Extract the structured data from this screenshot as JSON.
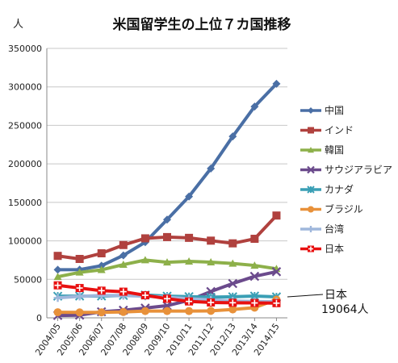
{
  "chart_data": {
    "type": "line",
    "title": "米国留学生の上位７カ国推移",
    "ylabel": "人",
    "xlabel": "",
    "ylim": [
      0,
      350000
    ],
    "yticks": [
      0,
      50000,
      100000,
      150000,
      200000,
      250000,
      300000,
      350000
    ],
    "grid": "horizontal",
    "legend_position": "right",
    "categories": [
      "2004/05",
      "2005/06",
      "2006/07",
      "2007/08",
      "2008/09",
      "2009/10",
      "2010/11",
      "2011/12",
      "2012/13",
      "2013/14",
      "2014/15"
    ],
    "series": [
      {
        "name": "中国",
        "color": "#4a6fa5",
        "marker": "diamond",
        "values": [
          62523,
          62582,
          67723,
          81127,
          98235,
          127628,
          157558,
          194029,
          235597,
          274439,
          304040
        ]
      },
      {
        "name": "インド",
        "color": "#b0413e",
        "marker": "square",
        "values": [
          80466,
          76503,
          83833,
          94563,
          103260,
          104897,
          103895,
          100270,
          96754,
          102673,
          132888
        ]
      },
      {
        "name": "韓国",
        "color": "#8db04a",
        "marker": "triangle",
        "values": [
          53358,
          59022,
          62392,
          69124,
          75065,
          72153,
          73351,
          72295,
          70627,
          68047,
          63710
        ]
      },
      {
        "name": "サウジアラビア",
        "color": "#6b4a8c",
        "marker": "x",
        "values": [
          3035,
          3448,
          7886,
          9873,
          12661,
          15810,
          22704,
          34139,
          44566,
          53919,
          59945
        ]
      },
      {
        "name": "カナダ",
        "color": "#3a9fb5",
        "marker": "star",
        "values": [
          28140,
          28202,
          28280,
          29051,
          29697,
          28145,
          27546,
          26821,
          27357,
          28304,
          27240
        ]
      },
      {
        "name": "ブラジル",
        "color": "#e8913a",
        "marker": "circle",
        "values": [
          7244,
          7009,
          7126,
          7578,
          8767,
          8786,
          8777,
          9029,
          10868,
          13286,
          23675
        ]
      },
      {
        "name": "台湾",
        "color": "#9fb7dc",
        "marker": "plus",
        "values": [
          25914,
          27876,
          29094,
          29001,
          28065,
          26685,
          24818,
          23250,
          21867,
          21266,
          20993
        ]
      },
      {
        "name": "日本",
        "color": "#e81010",
        "marker": "cross-square",
        "values": [
          42215,
          38712,
          35282,
          33974,
          29264,
          24842,
          21290,
          19966,
          19568,
          19334,
          19064
        ]
      }
    ],
    "annotation": {
      "line1": "日本",
      "line2": "19064人"
    }
  }
}
